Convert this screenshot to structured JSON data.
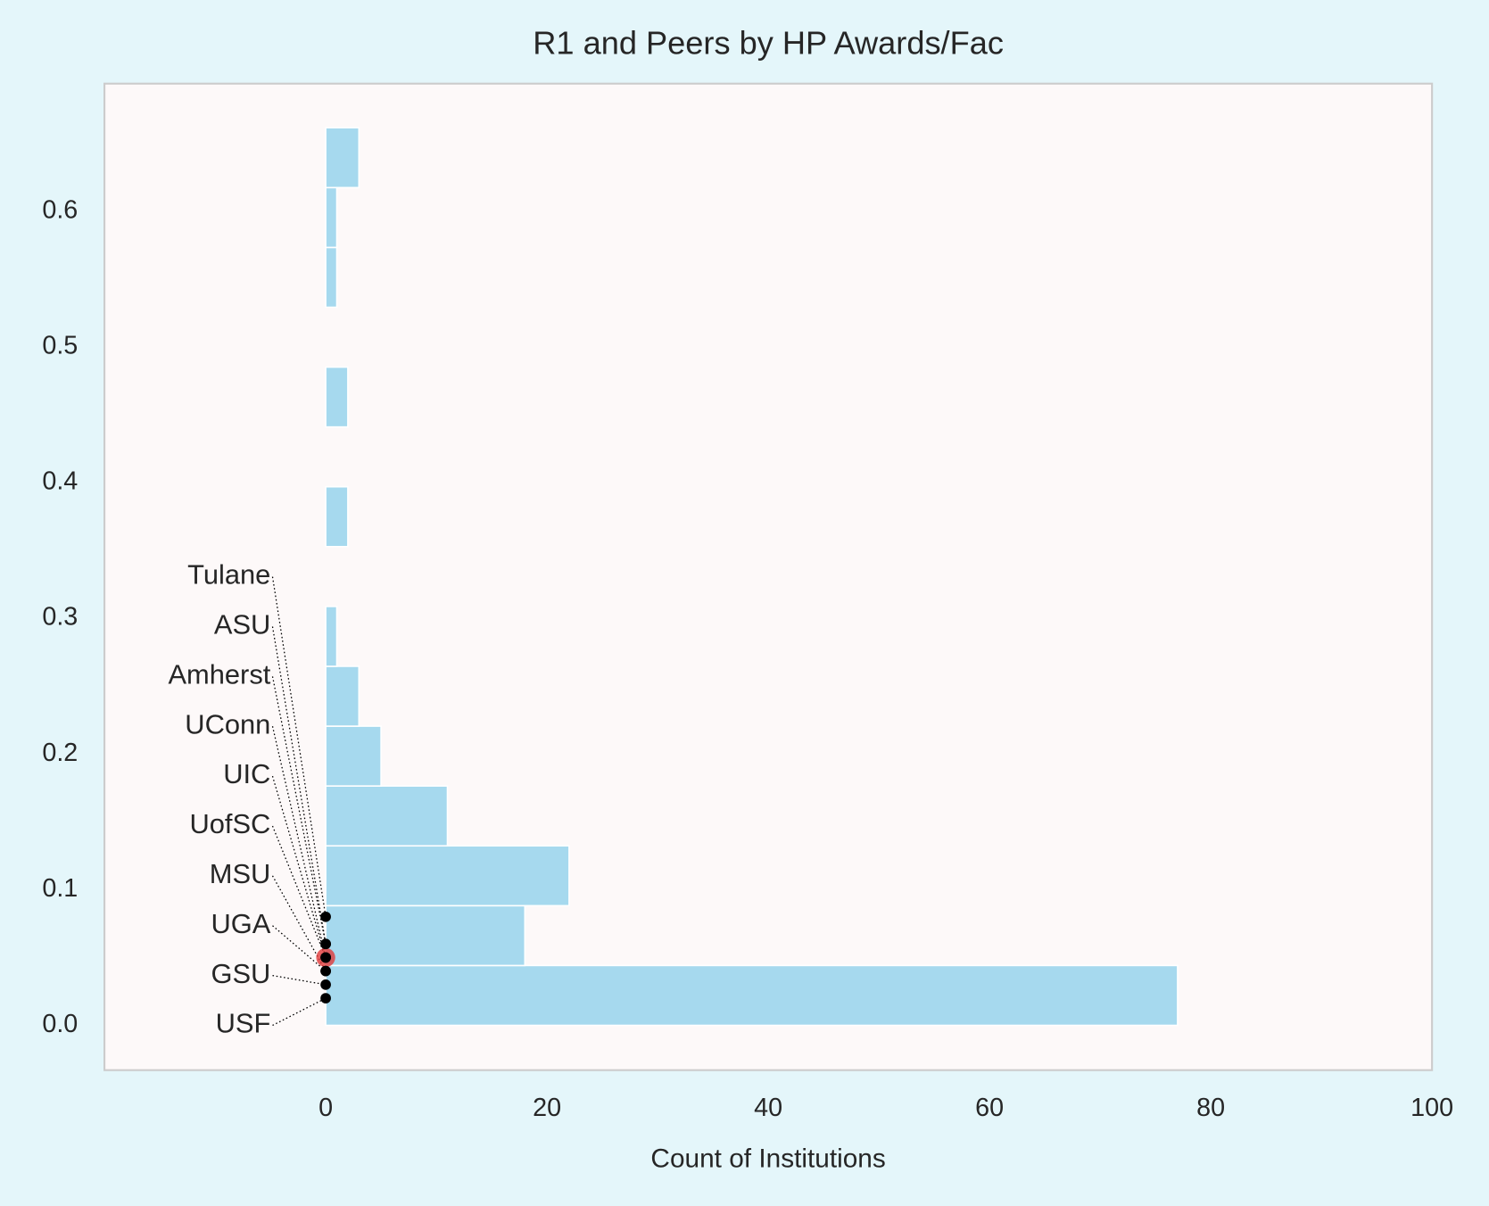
{
  "chart_data": {
    "type": "histogram",
    "orientation": "horizontal",
    "title": "R1 and Peers by HP Awards/Fac",
    "x_label": "Count of Institutions",
    "bins": [
      0,
      0.0441,
      0.0882,
      0.1323,
      0.1764,
      0.2205,
      0.2646,
      0.3087,
      0.3528,
      0.3969,
      0.441,
      0.4851,
      0.5292,
      0.5733,
      0.6174,
      0.6615
    ],
    "values": [
      77,
      18,
      22,
      11,
      5,
      3,
      1,
      0,
      2,
      0,
      2,
      0,
      1,
      1,
      3
    ],
    "color": "#a6d9ee",
    "xlim": [
      -20,
      100
    ],
    "xticks": [
      0,
      20,
      40,
      60,
      80,
      100
    ],
    "ylim": [
      -0.033,
      0.694
    ],
    "yticks": [
      {
        "value": 0,
        "label": "0.0"
      },
      0.1,
      0.2,
      0.3,
      0.4,
      0.5,
      0.6
    ],
    "grid": false,
    "points": {
      "labels": [
        "USF",
        "GSU",
        "UGA",
        "MSU",
        "UofSC",
        "UIC",
        "UConn",
        "Amherst",
        "ASU",
        "Tulane"
      ],
      "values": [
        0.02,
        0.03,
        0.04,
        0.04,
        0.05,
        0.05,
        0.05,
        0.06,
        0.06,
        0.08
      ],
      "color": "#000000"
    },
    "highlight": {
      "value": 0.05,
      "color": "#e03a3a"
    }
  }
}
